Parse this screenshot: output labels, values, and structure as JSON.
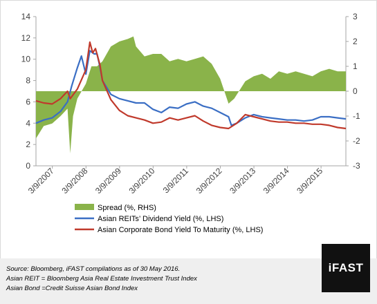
{
  "chart_data": {
    "type": "bar+line",
    "title": "",
    "x_ticks": [
      "3/9/2007",
      "3/9/2008",
      "3/9/2009",
      "3/9/2010",
      "3/9/2011",
      "3/9/2012",
      "3/9/2013",
      "3/9/2014",
      "3/9/2015"
    ],
    "y_left": {
      "min": 0,
      "max": 14,
      "ticks": [
        "0",
        "2",
        "4",
        "6",
        "8",
        "10",
        "12",
        "14"
      ]
    },
    "y_right": {
      "min": -3,
      "max": 3,
      "ticks": [
        "-3",
        "-2",
        "-1",
        "0",
        "1",
        "2",
        "3"
      ]
    },
    "legend_placement": "bottom-center",
    "x_start": "2007-03-09",
    "x_end": "2016-05-30",
    "series": [
      {
        "name": "Spread (%, RHS)",
        "type": "bar",
        "axis": "right",
        "color": "#8ab34a",
        "points": [
          [
            "2007-03-09",
            -1.9
          ],
          [
            "2007-06-01",
            -1.4
          ],
          [
            "2007-09-01",
            -1.3
          ],
          [
            "2007-12-01",
            -1.0
          ],
          [
            "2008-02-15",
            -0.7
          ],
          [
            "2008-03-15",
            -2.5
          ],
          [
            "2008-04-15",
            -1.0
          ],
          [
            "2008-06-01",
            -0.3
          ],
          [
            "2008-09-01",
            0.3
          ],
          [
            "2008-11-01",
            1.0
          ],
          [
            "2009-01-01",
            1.0
          ],
          [
            "2009-03-01",
            1.2
          ],
          [
            "2009-06-01",
            1.8
          ],
          [
            "2009-09-01",
            2.0
          ],
          [
            "2009-12-01",
            2.1
          ],
          [
            "2010-02-01",
            2.2
          ],
          [
            "2010-03-01",
            1.8
          ],
          [
            "2010-06-01",
            1.4
          ],
          [
            "2010-09-01",
            1.5
          ],
          [
            "2010-12-01",
            1.5
          ],
          [
            "2011-03-01",
            1.2
          ],
          [
            "2011-06-01",
            1.3
          ],
          [
            "2011-09-01",
            1.2
          ],
          [
            "2011-12-01",
            1.3
          ],
          [
            "2012-03-01",
            1.4
          ],
          [
            "2012-06-01",
            1.1
          ],
          [
            "2012-09-01",
            0.5
          ],
          [
            "2012-12-01",
            -0.5
          ],
          [
            "2013-02-01",
            -0.3
          ],
          [
            "2013-06-01",
            0.4
          ],
          [
            "2013-09-01",
            0.6
          ],
          [
            "2013-12-01",
            0.7
          ],
          [
            "2014-03-01",
            0.5
          ],
          [
            "2014-06-01",
            0.8
          ],
          [
            "2014-09-01",
            0.7
          ],
          [
            "2014-12-01",
            0.8
          ],
          [
            "2015-03-01",
            0.7
          ],
          [
            "2015-06-01",
            0.6
          ],
          [
            "2015-09-01",
            0.8
          ],
          [
            "2015-12-01",
            0.9
          ],
          [
            "2016-03-01",
            0.8
          ],
          [
            "2016-05-30",
            0.8
          ]
        ]
      },
      {
        "name": "Asian REITs’ Dividend Yield (%, LHS)",
        "type": "line",
        "axis": "left",
        "color": "#3a6ec4",
        "points": [
          [
            "2007-03-09",
            4.0
          ],
          [
            "2007-06-01",
            4.3
          ],
          [
            "2007-09-01",
            4.5
          ],
          [
            "2007-12-01",
            5.1
          ],
          [
            "2008-02-15",
            6.0
          ],
          [
            "2008-04-01",
            7.5
          ],
          [
            "2008-06-01",
            9.2
          ],
          [
            "2008-07-15",
            10.3
          ],
          [
            "2008-09-01",
            8.6
          ],
          [
            "2008-10-15",
            10.8
          ],
          [
            "2008-12-01",
            10.5
          ],
          [
            "2009-01-01",
            10.5
          ],
          [
            "2009-02-01",
            9.3
          ],
          [
            "2009-03-01",
            8.0
          ],
          [
            "2009-06-01",
            6.7
          ],
          [
            "2009-09-01",
            6.3
          ],
          [
            "2009-12-01",
            6.1
          ],
          [
            "2010-03-01",
            5.9
          ],
          [
            "2010-06-01",
            5.9
          ],
          [
            "2010-09-01",
            5.3
          ],
          [
            "2010-12-01",
            5.0
          ],
          [
            "2011-03-01",
            5.5
          ],
          [
            "2011-06-01",
            5.4
          ],
          [
            "2011-09-01",
            5.8
          ],
          [
            "2011-12-01",
            6.0
          ],
          [
            "2012-03-01",
            5.6
          ],
          [
            "2012-06-01",
            5.4
          ],
          [
            "2012-09-01",
            5.0
          ],
          [
            "2012-12-01",
            4.6
          ],
          [
            "2013-01-01",
            3.8
          ],
          [
            "2013-03-01",
            4.0
          ],
          [
            "2013-06-01",
            4.5
          ],
          [
            "2013-09-01",
            4.8
          ],
          [
            "2013-12-01",
            4.6
          ],
          [
            "2014-03-01",
            4.5
          ],
          [
            "2014-06-01",
            4.4
          ],
          [
            "2014-09-01",
            4.3
          ],
          [
            "2014-12-01",
            4.3
          ],
          [
            "2015-03-01",
            4.2
          ],
          [
            "2015-06-01",
            4.3
          ],
          [
            "2015-09-01",
            4.6
          ],
          [
            "2015-12-01",
            4.6
          ],
          [
            "2016-03-01",
            4.5
          ],
          [
            "2016-05-30",
            4.4
          ]
        ]
      },
      {
        "name": "Asian Corporate Bond Yield To Maturity (%, LHS)",
        "type": "line",
        "axis": "left",
        "color": "#c0392b",
        "points": [
          [
            "2007-03-09",
            6.1
          ],
          [
            "2007-06-01",
            5.9
          ],
          [
            "2007-09-01",
            5.8
          ],
          [
            "2007-12-01",
            6.3
          ],
          [
            "2008-02-15",
            7.0
          ],
          [
            "2008-03-15",
            6.3
          ],
          [
            "2008-06-01",
            7.2
          ],
          [
            "2008-09-01",
            9.0
          ],
          [
            "2008-10-15",
            11.6
          ],
          [
            "2008-11-15",
            10.6
          ],
          [
            "2008-12-15",
            11.0
          ],
          [
            "2009-02-01",
            9.5
          ],
          [
            "2009-03-01",
            8.0
          ],
          [
            "2009-06-01",
            6.2
          ],
          [
            "2009-09-01",
            5.2
          ],
          [
            "2009-12-01",
            4.7
          ],
          [
            "2010-03-01",
            4.5
          ],
          [
            "2010-06-01",
            4.3
          ],
          [
            "2010-09-01",
            4.0
          ],
          [
            "2010-12-01",
            4.1
          ],
          [
            "2011-03-01",
            4.5
          ],
          [
            "2011-06-01",
            4.3
          ],
          [
            "2011-09-01",
            4.5
          ],
          [
            "2011-12-01",
            4.7
          ],
          [
            "2012-03-01",
            4.2
          ],
          [
            "2012-06-01",
            3.8
          ],
          [
            "2012-09-01",
            3.6
          ],
          [
            "2012-12-01",
            3.5
          ],
          [
            "2013-03-01",
            4.0
          ],
          [
            "2013-06-01",
            4.8
          ],
          [
            "2013-09-01",
            4.6
          ],
          [
            "2013-12-01",
            4.4
          ],
          [
            "2014-03-01",
            4.2
          ],
          [
            "2014-06-01",
            4.1
          ],
          [
            "2014-09-01",
            4.1
          ],
          [
            "2014-12-01",
            4.0
          ],
          [
            "2015-03-01",
            4.0
          ],
          [
            "2015-06-01",
            3.9
          ],
          [
            "2015-09-01",
            3.9
          ],
          [
            "2015-12-01",
            3.8
          ],
          [
            "2016-03-01",
            3.6
          ],
          [
            "2016-05-30",
            3.5
          ]
        ]
      }
    ]
  },
  "footnotes": {
    "source": "Source: Bloomberg, iFAST compilations as of 30 May 2016.",
    "reit": "Asian REIT = Bloomberg Asia Real Estate Investment Trust Index",
    "bond": "Asian Bond =Credit Suisse Asian Bond  Index"
  },
  "logo": {
    "text": "iFAST"
  }
}
